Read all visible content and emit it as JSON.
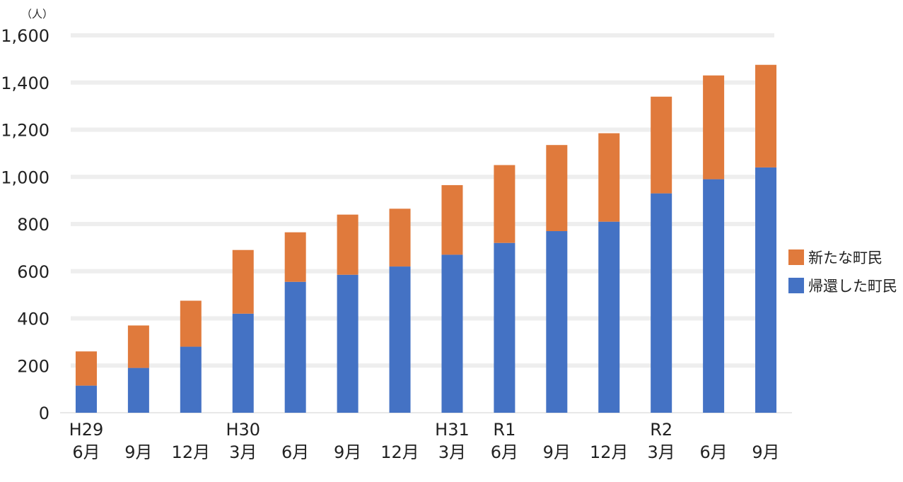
{
  "chart_data": {
    "type": "bar",
    "stacked": true,
    "unit_label": "（人）",
    "ylim": [
      0,
      1600
    ],
    "yticks": [
      0,
      200,
      400,
      600,
      800,
      1000,
      1200,
      1400,
      1600
    ],
    "ytick_labels": [
      "0",
      "200",
      "400",
      "600",
      "800",
      "1,000",
      "1,200",
      "1,400",
      "1,600"
    ],
    "categories": [
      {
        "era": "H29",
        "month": "6月"
      },
      {
        "era": "",
        "month": "9月"
      },
      {
        "era": "",
        "month": "12月"
      },
      {
        "era": "H30",
        "month": "3月"
      },
      {
        "era": "",
        "month": "6月"
      },
      {
        "era": "",
        "month": "9月"
      },
      {
        "era": "",
        "month": "12月"
      },
      {
        "era": "H31",
        "month": "3月"
      },
      {
        "era": "R1",
        "month": "6月"
      },
      {
        "era": "",
        "month": "9月"
      },
      {
        "era": "",
        "month": "12月"
      },
      {
        "era": "R2",
        "month": "3月"
      },
      {
        "era": "",
        "month": "6月"
      },
      {
        "era": "",
        "month": "9月"
      }
    ],
    "series": [
      {
        "name": "帰還した町民",
        "color": "#4472c4",
        "values": [
          115,
          190,
          280,
          420,
          555,
          585,
          620,
          670,
          720,
          770,
          810,
          930,
          990,
          1040
        ]
      },
      {
        "name": "新たな町民",
        "color": "#e07a3c",
        "values": [
          145,
          180,
          195,
          270,
          210,
          255,
          245,
          295,
          330,
          365,
          375,
          410,
          440,
          435
        ]
      }
    ],
    "legend_position": "right"
  }
}
